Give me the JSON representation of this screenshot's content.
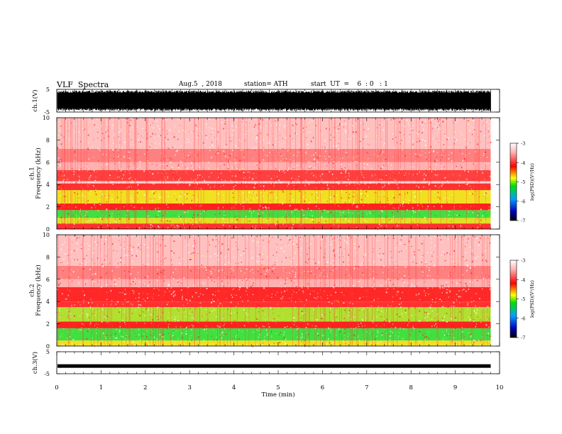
{
  "header": {
    "title": "VLF  Spectra",
    "date": "Aug.5  , 2018",
    "station": "station= ATH",
    "start": "start  UT  =    6  : 0   : 1"
  },
  "colorbar": {
    "label": "log(PSD)(V²/Hz)",
    "ticks": [
      "-3",
      "-4",
      "-5",
      "-6",
      "-7"
    ]
  },
  "chart_data": [
    {
      "type": "line",
      "panel": "ch1-waveform",
      "ylabel": "ch.1(V)",
      "ylim": [
        -5,
        5
      ],
      "yticks": [
        "5",
        "-5"
      ],
      "xlim": [
        0,
        10
      ],
      "data_end_min": 9.8,
      "description_values": {
        "amplitude_V": 4.5
      },
      "color": "#000000"
    },
    {
      "type": "heatmap",
      "panel": "ch1-spectrogram",
      "ylabel_line1": "ch.1",
      "ylabel_line2": "Frequency  (kHz)",
      "ylim": [
        0,
        10
      ],
      "yticks": [
        "0",
        "2",
        "4",
        "6",
        "8",
        "10"
      ],
      "xlim": [
        0,
        10
      ],
      "data_end_min": 9.8,
      "bands": [
        {
          "f_lo": 0.0,
          "f_hi": 0.5,
          "color": "#ff3030"
        },
        {
          "f_lo": 0.5,
          "f_hi": 1.0,
          "color": "#e0e020"
        },
        {
          "f_lo": 1.0,
          "f_hi": 1.7,
          "color": "#40e040"
        },
        {
          "f_lo": 1.7,
          "f_hi": 2.3,
          "color": "#ff2020"
        },
        {
          "f_lo": 2.3,
          "f_hi": 3.5,
          "color": "#f0e020"
        },
        {
          "f_lo": 3.5,
          "f_hi": 4.1,
          "color": "#ff3030"
        },
        {
          "f_lo": 4.1,
          "f_hi": 4.3,
          "color": "#ffd0d0"
        },
        {
          "f_lo": 4.3,
          "f_hi": 5.3,
          "color": "#ff4040"
        },
        {
          "f_lo": 5.3,
          "f_hi": 6.0,
          "color": "#ffb0b0"
        },
        {
          "f_lo": 6.0,
          "f_hi": 7.2,
          "color": "#ff8080"
        },
        {
          "f_lo": 7.2,
          "f_hi": 10.0,
          "color": "#ffc0c0"
        }
      ]
    },
    {
      "type": "heatmap",
      "panel": "ch2-spectrogram",
      "ylabel_line1": "ch.2",
      "ylabel_line2": "Frequency  (kHz)",
      "ylim": [
        0,
        10
      ],
      "yticks": [
        "0",
        "2",
        "4",
        "6",
        "8",
        "10"
      ],
      "xlim": [
        0,
        10
      ],
      "data_end_min": 9.8,
      "bands": [
        {
          "f_lo": 0.0,
          "f_hi": 0.5,
          "color": "#f0e020"
        },
        {
          "f_lo": 0.5,
          "f_hi": 1.6,
          "color": "#40e040"
        },
        {
          "f_lo": 1.6,
          "f_hi": 2.2,
          "color": "#ff2020"
        },
        {
          "f_lo": 2.2,
          "f_hi": 3.5,
          "color": "#b0e030"
        },
        {
          "f_lo": 3.5,
          "f_hi": 4.0,
          "color": "#ff3030"
        },
        {
          "f_lo": 4.0,
          "f_hi": 5.3,
          "color": "#ff2828"
        },
        {
          "f_lo": 5.3,
          "f_hi": 6.0,
          "color": "#ffb0b0"
        },
        {
          "f_lo": 6.0,
          "f_hi": 7.2,
          "color": "#ff8080"
        },
        {
          "f_lo": 7.2,
          "f_hi": 10.0,
          "color": "#ffc0c0"
        }
      ]
    },
    {
      "type": "line",
      "panel": "ch3-waveform",
      "ylabel": "ch.3(V)",
      "ylim": [
        -5,
        5
      ],
      "yticks": [
        "5",
        "-5"
      ],
      "xlim": [
        0,
        10
      ],
      "data_end_min": 9.8,
      "description_values": {
        "level_V": -1.5
      },
      "xlabel": "Time  (min)",
      "xticks": [
        "0",
        "1",
        "2",
        "3",
        "4",
        "5",
        "6",
        "7",
        "8",
        "9",
        "10"
      ],
      "color": "#000000"
    }
  ]
}
